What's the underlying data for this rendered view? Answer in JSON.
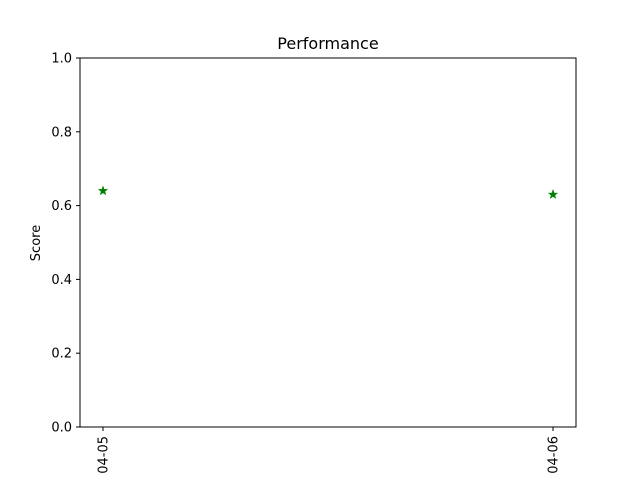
{
  "chart_data": {
    "type": "scatter",
    "title": "Performance",
    "xlabel": "",
    "ylabel": "Score",
    "categories": [
      "04-05",
      "04-06"
    ],
    "series": [
      {
        "values": [
          0.64,
          0.63
        ],
        "color": "#008000",
        "marker": "star-icon"
      }
    ],
    "ylim": [
      0,
      1
    ],
    "yticks": [
      "0.0",
      "0.2",
      "0.4",
      "0.6",
      "0.8",
      "1.0"
    ],
    "grid": false,
    "legend": "none"
  }
}
